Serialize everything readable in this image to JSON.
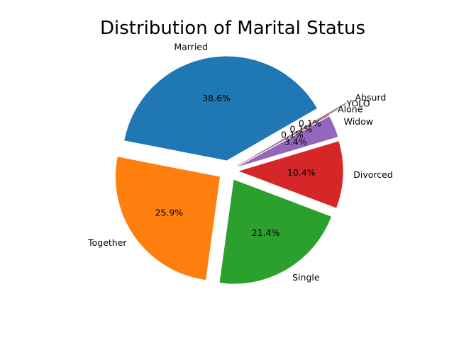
{
  "chart_data": {
    "type": "pie",
    "title": "Distribution of Marital Status",
    "autopct": true,
    "slices": [
      {
        "label": "Married",
        "percent": 38.6,
        "color": "#1f77b4"
      },
      {
        "label": "Together",
        "percent": 25.9,
        "color": "#ff7f0e"
      },
      {
        "label": "Single",
        "percent": 21.4,
        "color": "#2ca02c"
      },
      {
        "label": "Divorced",
        "percent": 10.4,
        "color": "#d62728"
      },
      {
        "label": "Widow",
        "percent": 3.4,
        "color": "#9467bd"
      },
      {
        "label": "Alone",
        "percent": 0.1,
        "color": "#8c564b"
      },
      {
        "label": "YOLO",
        "percent": 0.1,
        "color": "#e377c2"
      },
      {
        "label": "Absurd",
        "percent": 0.1,
        "color": "#7f7f7f"
      }
    ]
  }
}
